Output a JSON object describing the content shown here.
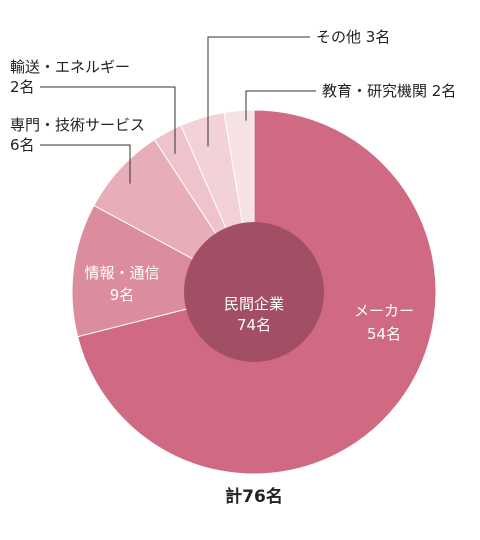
{
  "chart_data": {
    "type": "pie",
    "title": "",
    "total_label": "計76名",
    "center": {
      "line1": "民間企業",
      "line2": "74名",
      "value": 74
    },
    "slices": [
      {
        "line1": "メーカー",
        "line2": "54名",
        "value": 54,
        "color": "#d06a82",
        "text_color": "#ffffff"
      },
      {
        "line1": "情報・通信",
        "line2": "9名",
        "value": 9,
        "color": "#dc8d9d",
        "text_color": "#ffffff"
      },
      {
        "line1": "専門・技術サービス",
        "line2": "6名",
        "value": 6,
        "color": "#e7aeb9",
        "text_color": "#222222"
      },
      {
        "line1": "輸送・エネルギー",
        "line2": "2名",
        "value": 2,
        "color": "#eec3cb",
        "text_color": "#222222"
      },
      {
        "line1": "その他",
        "line2": "3名",
        "value": 3,
        "color": "#f2d2d8",
        "text_color": "#222222"
      },
      {
        "line1": "教育・研究機関",
        "line2": "2名",
        "value": 2,
        "color": "#f6e1e5",
        "text_color": "#222222"
      }
    ],
    "inner_color": "#a24f66"
  }
}
